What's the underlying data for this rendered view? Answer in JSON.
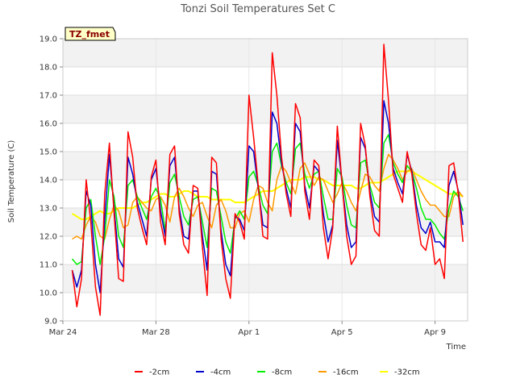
{
  "chart_data": {
    "type": "line",
    "title": "Tonzi Soil Temperatures Set C",
    "xlabel": "Time",
    "ylabel": "Soil Temperature (C)",
    "site_badge": "TZ_fmet",
    "xlim": [
      0,
      17.4
    ],
    "ylim": [
      9.0,
      19.0
    ],
    "yticks": [
      "9.0",
      "10.0",
      "11.0",
      "12.0",
      "13.0",
      "14.0",
      "15.0",
      "16.0",
      "17.0",
      "18.0",
      "19.0"
    ],
    "xticks": [
      {
        "label": "Mar 24",
        "day": 0
      },
      {
        "label": "Mar 28",
        "day": 4
      },
      {
        "label": "Apr 1",
        "day": 8
      },
      {
        "label": "Apr 5",
        "day": 12
      },
      {
        "label": "Apr 9",
        "day": 16
      }
    ],
    "x_days": [
      0.4,
      0.6,
      0.8,
      1.0,
      1.2,
      1.4,
      1.6,
      1.8,
      2.0,
      2.2,
      2.4,
      2.6,
      2.8,
      3.0,
      3.2,
      3.4,
      3.6,
      3.8,
      4.0,
      4.2,
      4.4,
      4.6,
      4.8,
      5.0,
      5.2,
      5.4,
      5.6,
      5.8,
      6.0,
      6.2,
      6.4,
      6.6,
      6.8,
      7.0,
      7.2,
      7.4,
      7.6,
      7.8,
      8.0,
      8.2,
      8.4,
      8.6,
      8.8,
      9.0,
      9.2,
      9.4,
      9.6,
      9.8,
      10.0,
      10.2,
      10.4,
      10.6,
      10.8,
      11.0,
      11.2,
      11.4,
      11.6,
      11.8,
      12.0,
      12.2,
      12.4,
      12.6,
      12.8,
      13.0,
      13.2,
      13.4,
      13.6,
      13.8,
      14.0,
      14.2,
      14.4,
      14.6,
      14.8,
      15.0,
      15.2,
      15.4,
      15.6,
      15.8,
      16.0,
      16.2,
      16.4,
      16.6,
      16.8,
      17.0,
      17.2
    ],
    "series": [
      {
        "name": "-2cm",
        "color": "#ff0000",
        "values": [
          10.8,
          9.5,
          10.5,
          14.0,
          12.5,
          10.2,
          9.2,
          13.5,
          15.3,
          12.8,
          10.5,
          10.4,
          15.7,
          14.8,
          13.0,
          12.3,
          11.7,
          14.1,
          14.7,
          12.5,
          11.7,
          14.9,
          15.2,
          12.8,
          11.7,
          11.4,
          13.8,
          13.7,
          11.6,
          9.9,
          14.8,
          14.6,
          11.9,
          10.5,
          9.8,
          12.8,
          12.5,
          11.9,
          17.0,
          15.5,
          13.8,
          12.0,
          11.9,
          18.5,
          17.0,
          14.8,
          13.5,
          12.7,
          16.7,
          16.2,
          13.6,
          12.6,
          14.7,
          14.5,
          12.3,
          11.2,
          12.3,
          15.9,
          13.9,
          12.0,
          11.0,
          11.3,
          16.0,
          15.2,
          13.4,
          12.2,
          12.0,
          18.8,
          16.8,
          14.2,
          13.7,
          13.2,
          15.0,
          14.2,
          12.8,
          11.7,
          11.5,
          12.3,
          11.0,
          11.2,
          10.5,
          14.5,
          14.6,
          13.5,
          11.8
        ]
      },
      {
        "name": "-4cm",
        "color": "#0000cc",
        "values": [
          10.8,
          10.2,
          10.8,
          13.6,
          13.1,
          11.0,
          10.0,
          12.6,
          14.9,
          13.0,
          11.2,
          10.9,
          14.8,
          14.2,
          13.2,
          12.6,
          12.0,
          14.0,
          14.4,
          12.9,
          12.0,
          14.5,
          14.8,
          13.0,
          12.0,
          11.9,
          13.6,
          13.6,
          12.0,
          10.8,
          14.3,
          14.2,
          12.2,
          11.0,
          10.6,
          12.7,
          12.6,
          12.2,
          15.2,
          15.0,
          13.7,
          12.4,
          12.3,
          16.4,
          16.0,
          14.6,
          13.7,
          13.0,
          16.0,
          15.7,
          13.8,
          13.0,
          14.5,
          14.3,
          12.8,
          11.8,
          12.4,
          15.4,
          13.9,
          12.4,
          11.6,
          11.8,
          15.5,
          15.1,
          13.6,
          12.7,
          12.5,
          16.8,
          16.0,
          14.4,
          13.9,
          13.5,
          14.9,
          14.3,
          13.1,
          12.3,
          12.1,
          12.5,
          11.8,
          11.8,
          11.6,
          13.8,
          14.3,
          13.6,
          12.4
        ]
      },
      {
        "name": "-8cm",
        "color": "#00ee00",
        "values": [
          11.2,
          11.0,
          11.1,
          13.0,
          13.3,
          12.0,
          11.0,
          12.0,
          14.0,
          13.4,
          12.0,
          11.6,
          13.8,
          14.0,
          13.4,
          13.0,
          12.6,
          13.4,
          13.7,
          13.3,
          12.2,
          13.9,
          14.2,
          13.4,
          12.7,
          12.4,
          13.3,
          13.4,
          12.5,
          11.6,
          13.7,
          13.6,
          12.7,
          11.8,
          11.4,
          12.6,
          12.9,
          12.6,
          14.1,
          14.3,
          13.8,
          13.1,
          12.8,
          15.0,
          15.3,
          14.5,
          13.9,
          13.5,
          15.1,
          15.3,
          14.2,
          13.7,
          14.2,
          14.3,
          13.4,
          12.6,
          12.6,
          14.4,
          14.1,
          13.1,
          12.4,
          12.3,
          14.6,
          14.7,
          13.8,
          13.2,
          13.0,
          15.3,
          15.6,
          14.6,
          14.2,
          13.9,
          14.5,
          14.3,
          13.7,
          13.0,
          12.6,
          12.6,
          12.4,
          12.1,
          11.9,
          13.0,
          13.6,
          13.4,
          12.9
        ]
      },
      {
        "name": "-16cm",
        "color": "#ff9900",
        "values": [
          11.9,
          12.0,
          11.9,
          12.4,
          12.7,
          12.5,
          12.0,
          11.9,
          12.6,
          13.1,
          12.9,
          12.3,
          12.4,
          13.2,
          13.4,
          13.2,
          13.0,
          12.9,
          13.3,
          13.4,
          13.1,
          12.5,
          13.4,
          13.7,
          13.4,
          13.0,
          12.7,
          13.1,
          13.2,
          12.7,
          12.3,
          13.1,
          13.3,
          12.9,
          12.3,
          12.3,
          12.8,
          12.9,
          12.5,
          13.3,
          13.8,
          13.7,
          13.2,
          12.9,
          14.0,
          14.5,
          14.3,
          13.9,
          13.5,
          14.4,
          14.6,
          14.2,
          13.8,
          14.1,
          14.0,
          13.6,
          13.2,
          13.5,
          13.9,
          13.6,
          13.2,
          12.9,
          13.6,
          14.2,
          14.1,
          13.8,
          13.6,
          14.4,
          14.9,
          14.7,
          14.4,
          14.0,
          14.3,
          14.4,
          14.0,
          13.6,
          13.3,
          13.1,
          13.1,
          12.9,
          12.7,
          12.7,
          13.4,
          13.6,
          13.4
        ]
      },
      {
        "name": "-32cm",
        "color": "#ffff00",
        "values": [
          12.8,
          12.7,
          12.6,
          12.6,
          12.7,
          12.8,
          12.9,
          12.8,
          12.8,
          12.9,
          13.0,
          13.0,
          13.0,
          13.0,
          13.1,
          13.2,
          13.2,
          13.3,
          13.4,
          13.5,
          13.5,
          13.4,
          13.4,
          13.5,
          13.6,
          13.6,
          13.5,
          13.4,
          13.4,
          13.4,
          13.3,
          13.3,
          13.3,
          13.3,
          13.3,
          13.2,
          13.2,
          13.2,
          13.3,
          13.4,
          13.5,
          13.6,
          13.6,
          13.6,
          13.7,
          13.8,
          13.9,
          14.0,
          14.0,
          14.0,
          14.1,
          14.1,
          14.1,
          14.0,
          14.0,
          13.9,
          13.8,
          13.8,
          13.8,
          13.8,
          13.8,
          13.7,
          13.7,
          13.8,
          13.9,
          13.9,
          13.9,
          14.0,
          14.1,
          14.2,
          14.3,
          14.3,
          14.3,
          14.3,
          14.2,
          14.1,
          14.0,
          13.9,
          13.8,
          13.7,
          13.6,
          13.5,
          13.5,
          13.5,
          13.4
        ]
      }
    ],
    "legend_position": "bottom",
    "grid": true,
    "shaded_bands": true
  }
}
